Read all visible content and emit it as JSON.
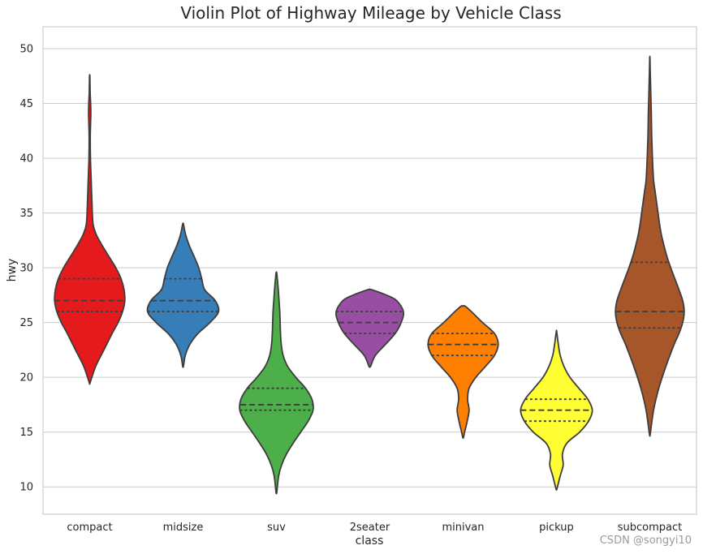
{
  "chart_data": {
    "type": "violin",
    "title": "Violin Plot of Highway Mileage by Vehicle Class",
    "xlabel": "class",
    "ylabel": "hwy",
    "ylim": [
      7.5,
      52
    ],
    "yticks": [
      10,
      15,
      20,
      25,
      30,
      35,
      40,
      45,
      50
    ],
    "grid": true,
    "categories": [
      "compact",
      "midsize",
      "suv",
      "2seater",
      "minivan",
      "pickup",
      "subcompact"
    ],
    "colors": [
      "#e41a1c",
      "#377eb8",
      "#4daf4a",
      "#984ea3",
      "#ff7f00",
      "#ffff33",
      "#a65628"
    ],
    "series": [
      {
        "category": "compact",
        "min": 19.5,
        "max": 47.5,
        "q1": 26,
        "median": 27,
        "q3": 29,
        "density": [
          [
            19.5,
            0.01
          ],
          [
            21,
            0.16
          ],
          [
            22.5,
            0.38
          ],
          [
            24,
            0.6
          ],
          [
            25,
            0.76
          ],
          [
            26,
            0.88
          ],
          [
            27,
            0.94
          ],
          [
            28,
            0.92
          ],
          [
            29,
            0.84
          ],
          [
            30,
            0.7
          ],
          [
            31,
            0.52
          ],
          [
            32,
            0.34
          ],
          [
            33,
            0.18
          ],
          [
            34,
            0.09
          ],
          [
            36,
            0.06
          ],
          [
            38,
            0.04
          ],
          [
            40,
            0.02
          ],
          [
            42,
            0.015
          ],
          [
            44,
            0.03
          ],
          [
            45,
            0.025
          ],
          [
            46,
            0.012
          ],
          [
            47.5,
            0.005
          ]
        ]
      },
      {
        "category": "midsize",
        "min": 21,
        "max": 34,
        "q1": 26,
        "median": 27,
        "q3": 29,
        "density": [
          [
            21,
            0.01
          ],
          [
            22,
            0.06
          ],
          [
            23,
            0.18
          ],
          [
            24,
            0.4
          ],
          [
            25,
            0.72
          ],
          [
            26,
            0.95
          ],
          [
            27,
            0.86
          ],
          [
            28,
            0.58
          ],
          [
            29,
            0.5
          ],
          [
            30,
            0.42
          ],
          [
            31,
            0.3
          ],
          [
            32,
            0.17
          ],
          [
            33,
            0.07
          ],
          [
            34,
            0.01
          ]
        ]
      },
      {
        "category": "suv",
        "min": 9.5,
        "max": 29.5,
        "q1": 17,
        "median": 17.5,
        "q3": 19,
        "density": [
          [
            9.5,
            0.01
          ],
          [
            11,
            0.06
          ],
          [
            12,
            0.14
          ],
          [
            13,
            0.27
          ],
          [
            14,
            0.45
          ],
          [
            15,
            0.65
          ],
          [
            16,
            0.85
          ],
          [
            17,
            0.98
          ],
          [
            18,
            0.95
          ],
          [
            19,
            0.78
          ],
          [
            20,
            0.52
          ],
          [
            21,
            0.3
          ],
          [
            22,
            0.18
          ],
          [
            23,
            0.13
          ],
          [
            24,
            0.11
          ],
          [
            25,
            0.1
          ],
          [
            26,
            0.09
          ],
          [
            27,
            0.07
          ],
          [
            28,
            0.05
          ],
          [
            29.5,
            0.01
          ]
        ]
      },
      {
        "category": "2seater",
        "min": 21,
        "max": 28,
        "q1": 24,
        "median": 25,
        "q3": 26,
        "density": [
          [
            21,
            0.02
          ],
          [
            22,
            0.15
          ],
          [
            23,
            0.42
          ],
          [
            24,
            0.68
          ],
          [
            25,
            0.84
          ],
          [
            26,
            0.9
          ],
          [
            27,
            0.72
          ],
          [
            27.5,
            0.45
          ],
          [
            28,
            0.05
          ]
        ]
      },
      {
        "category": "minivan",
        "min": 14.5,
        "max": 26.5,
        "q1": 22,
        "median": 23,
        "q3": 24,
        "density": [
          [
            14.5,
            0.01
          ],
          [
            15,
            0.04
          ],
          [
            16,
            0.11
          ],
          [
            17,
            0.16
          ],
          [
            18,
            0.12
          ],
          [
            19,
            0.16
          ],
          [
            20,
            0.34
          ],
          [
            21,
            0.6
          ],
          [
            22,
            0.84
          ],
          [
            23,
            0.94
          ],
          [
            24,
            0.84
          ],
          [
            25,
            0.52
          ],
          [
            26,
            0.22
          ],
          [
            26.5,
            0.05
          ]
        ]
      },
      {
        "category": "pickup",
        "min": 9.8,
        "max": 24.2,
        "q1": 16,
        "median": 17,
        "q3": 18,
        "density": [
          [
            9.8,
            0.01
          ],
          [
            11,
            0.1
          ],
          [
            12,
            0.18
          ],
          [
            13,
            0.16
          ],
          [
            14,
            0.28
          ],
          [
            15,
            0.62
          ],
          [
            16,
            0.86
          ],
          [
            17,
            0.96
          ],
          [
            18,
            0.84
          ],
          [
            19,
            0.6
          ],
          [
            20,
            0.36
          ],
          [
            21,
            0.2
          ],
          [
            22,
            0.1
          ],
          [
            23,
            0.05
          ],
          [
            24.2,
            0.005
          ]
        ]
      },
      {
        "category": "subcompact",
        "min": 14.8,
        "max": 49.2,
        "q1": 24.5,
        "median": 26,
        "q3": 30.5,
        "density": [
          [
            14.8,
            0.01
          ],
          [
            17,
            0.1
          ],
          [
            19,
            0.24
          ],
          [
            21,
            0.43
          ],
          [
            23,
            0.65
          ],
          [
            24,
            0.78
          ],
          [
            25,
            0.88
          ],
          [
            26,
            0.92
          ],
          [
            27,
            0.88
          ],
          [
            28,
            0.78
          ],
          [
            29,
            0.67
          ],
          [
            30,
            0.56
          ],
          [
            31,
            0.46
          ],
          [
            32,
            0.38
          ],
          [
            33,
            0.31
          ],
          [
            34,
            0.26
          ],
          [
            35,
            0.22
          ],
          [
            36,
            0.18
          ],
          [
            37,
            0.14
          ],
          [
            38,
            0.1
          ],
          [
            40,
            0.07
          ],
          [
            42,
            0.05
          ],
          [
            44,
            0.04
          ],
          [
            46,
            0.025
          ],
          [
            48,
            0.01
          ],
          [
            49.2,
            0.003
          ]
        ]
      }
    ]
  },
  "watermark": "CSDN @songyi10"
}
